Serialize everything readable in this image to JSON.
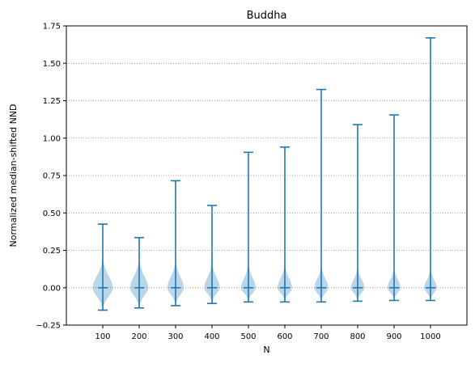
{
  "chart_data": {
    "type": "violin",
    "title": "Buddha",
    "xlabel": "N",
    "ylabel": "Normalized median-shifted NND",
    "ylim": [
      -0.25,
      1.75
    ],
    "yticks": [
      "−0.25",
      "0.00",
      "0.25",
      "0.50",
      "0.75",
      "1.00",
      "1.25",
      "1.50",
      "1.75"
    ],
    "grid": "horizontal-dotted",
    "categories": [
      "100",
      "200",
      "300",
      "400",
      "500",
      "600",
      "700",
      "800",
      "900",
      "1000"
    ],
    "min": [
      -0.15,
      -0.135,
      -0.12,
      -0.105,
      -0.095,
      -0.095,
      -0.095,
      -0.09,
      -0.085,
      -0.085
    ],
    "median": [
      0,
      0,
      0,
      0,
      0,
      0,
      0,
      0,
      0,
      0
    ],
    "max": [
      0.425,
      0.335,
      0.715,
      0.55,
      0.905,
      0.94,
      1.325,
      1.09,
      1.155,
      1.67
    ],
    "density_width": [
      0.55,
      0.5,
      0.45,
      0.42,
      0.4,
      0.4,
      0.38,
      0.37,
      0.36,
      0.35
    ],
    "colors": {
      "line": "#1f77b4",
      "body": "#1f77b4",
      "grid": "#808080"
    }
  }
}
